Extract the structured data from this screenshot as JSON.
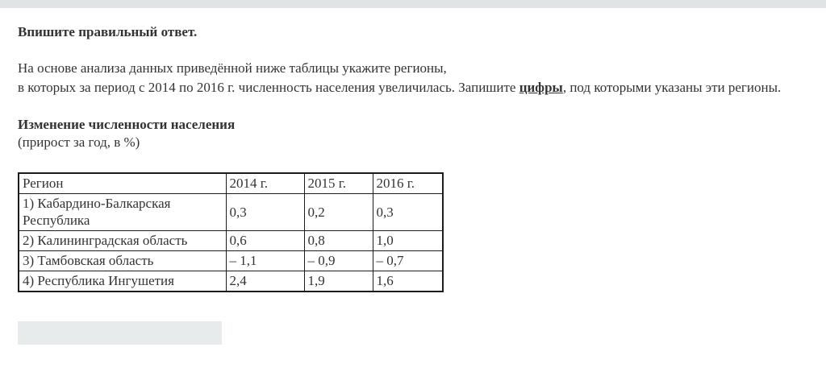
{
  "page": {
    "title": "Впишите правильный ответ.",
    "paragraph": {
      "line1": "На основе анализа данных приведённой ниже таблицы укажите регионы,",
      "line2_pre": "в которых за период с 2014 по 2016 г. численность населения увеличилась. Запишите ",
      "line2_bold": "цифры",
      "line2_post": ", под которыми указаны эти регионы."
    },
    "table_title": "Изменение численности населения",
    "table_subtitle": "(прирост за год, в %)"
  },
  "chart_data": {
    "type": "table",
    "title": "Изменение численности населения (прирост за год, в %)",
    "headers": [
      "Регион",
      "2014 г.",
      "2015 г.",
      "2016 г."
    ],
    "rows": [
      {
        "region": "1) Кабардино-Балкарская Республика",
        "values": [
          "0,3",
          "0,2",
          "0,3"
        ]
      },
      {
        "region": "2) Калининградская область",
        "values": [
          "0,6",
          "0,8",
          "1,0"
        ]
      },
      {
        "region": "3) Тамбовская область",
        "values": [
          "– 1,1",
          "– 0,9",
          "– 0,7"
        ]
      },
      {
        "region": "4) Республика Ингушетия",
        "values": [
          "2,4",
          "1,9",
          "1,6"
        ]
      }
    ]
  },
  "answer_input": {
    "value": "",
    "placeholder": ""
  },
  "colors": {
    "top_bar": "#e1e4e5",
    "text": "#333333",
    "table_border": "#1c1c1c",
    "input_bg": "#e8ebeb"
  }
}
